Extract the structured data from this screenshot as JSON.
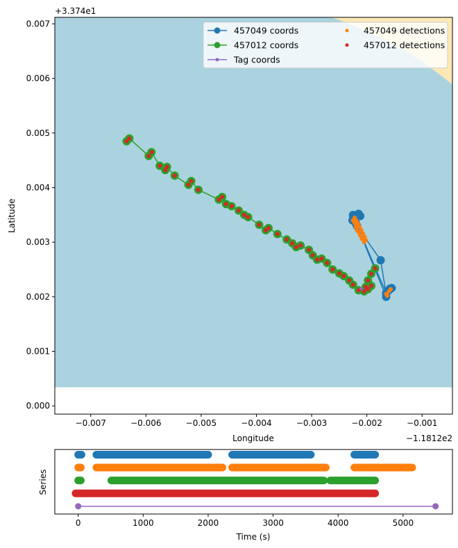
{
  "chart_data": [
    {
      "type": "scatter",
      "xlabel": "Longitude",
      "ylabel": "Latitude",
      "x_offset_label": "−1.1812e2",
      "y_offset_label": "+3.374e1",
      "xlim": [
        -0.00765,
        -0.00045
      ],
      "ylim": [
        -0.00015,
        0.00712
      ],
      "x_ticks": [
        -0.007,
        -0.006,
        -0.005,
        -0.004,
        -0.003,
        -0.002,
        -0.001
      ],
      "x_tick_labels": [
        "−0.007",
        "−0.006",
        "−0.005",
        "−0.004",
        "−0.003",
        "−0.002",
        "−0.001"
      ],
      "y_ticks": [
        0.0,
        0.001,
        0.002,
        0.003,
        0.004,
        0.005,
        0.006,
        0.007
      ],
      "y_tick_labels": [
        "0.000",
        "0.001",
        "0.002",
        "0.003",
        "0.004",
        "0.005",
        "0.006",
        "0.007"
      ],
      "background": {
        "water_color": "#aad3df",
        "land_color": "#fbe8b4",
        "water_bottom_lat": 0.00034
      },
      "legend": {
        "placement": "top-right",
        "columns": 2,
        "entries": [
          {
            "label": "457049 coords",
            "color": "#1f77b4",
            "style": "line-marker"
          },
          {
            "label": "457049 detections",
            "color": "#ff7f0e",
            "style": "point"
          },
          {
            "label": "457012 coords",
            "color": "#2ca02c",
            "style": "line-marker"
          },
          {
            "label": "457012 detections",
            "color": "#d62728",
            "style": "point"
          },
          {
            "label": "Tag coords",
            "color": "#9467bd",
            "style": "line-small-marker"
          }
        ]
      },
      "series": [
        {
          "name": "457049 coords",
          "color": "#1f77b4",
          "style": "line-marker",
          "points": [
            [
              -0.00225,
              0.0035
            ],
            [
              -0.00222,
              0.00345
            ],
            [
              -0.00226,
              0.0034
            ],
            [
              -0.0022,
              0.00335
            ],
            [
              -0.00215,
              0.00352
            ],
            [
              -0.00212,
              0.00348
            ],
            [
              -0.00218,
              0.0033
            ],
            [
              -0.00175,
              0.00267
            ],
            [
              -0.00165,
              0.00205
            ],
            [
              -0.0016,
              0.00212
            ],
            [
              -0.00155,
              0.00216
            ],
            [
              -0.00165,
              0.002
            ],
            [
              -0.00225,
              0.00348
            ],
            [
              -0.00165,
              0.00207
            ],
            [
              -0.00158,
              0.00215
            ]
          ]
        },
        {
          "name": "457049 detections",
          "color": "#ff7f0e",
          "style": "point",
          "points": [
            [
              -0.00225,
              0.0034
            ],
            [
              -0.00222,
              0.00335
            ],
            [
              -0.0022,
              0.00328
            ],
            [
              -0.00218,
              0.00322
            ],
            [
              -0.00215,
              0.00318
            ],
            [
              -0.00212,
              0.00312
            ],
            [
              -0.00209,
              0.00306
            ],
            [
              -0.00205,
              0.003
            ],
            [
              -0.00222,
              0.00345
            ],
            [
              -0.00219,
              0.0034
            ],
            [
              -0.00216,
              0.00334
            ],
            [
              -0.00213,
              0.00328
            ],
            [
              -0.0021,
              0.00322
            ],
            [
              -0.00207,
              0.00316
            ],
            [
              -0.00204,
              0.0031
            ],
            [
              -0.00202,
              0.00304
            ],
            [
              -0.00165,
              0.00205
            ],
            [
              -0.0016,
              0.0021
            ],
            [
              -0.00157,
              0.00214
            ],
            [
              -0.00163,
              0.00202
            ]
          ]
        },
        {
          "name": "457012 coords",
          "color": "#2ca02c",
          "style": "line-marker",
          "points": [
            [
              -0.00635,
              0.00485
            ],
            [
              -0.0063,
              0.0049
            ],
            [
              -0.00595,
              0.00458
            ],
            [
              -0.0059,
              0.00465
            ],
            [
              -0.00575,
              0.0044
            ],
            [
              -0.00565,
              0.00432
            ],
            [
              -0.00562,
              0.00438
            ],
            [
              -0.00548,
              0.00422
            ],
            [
              -0.00523,
              0.00405
            ],
            [
              -0.00518,
              0.00412
            ],
            [
              -0.00505,
              0.00396
            ],
            [
              -0.00468,
              0.00378
            ],
            [
              -0.00462,
              0.00383
            ],
            [
              -0.00455,
              0.0037
            ],
            [
              -0.00445,
              0.00366
            ],
            [
              -0.00432,
              0.00358
            ],
            [
              -0.00422,
              0.0035
            ],
            [
              -0.00415,
              0.00346
            ],
            [
              -0.00395,
              0.00332
            ],
            [
              -0.00383,
              0.00322
            ],
            [
              -0.00378,
              0.00326
            ],
            [
              -0.00362,
              0.00315
            ],
            [
              -0.00345,
              0.00305
            ],
            [
              -0.00335,
              0.00298
            ],
            [
              -0.00328,
              0.00291
            ],
            [
              -0.0032,
              0.00294
            ],
            [
              -0.00305,
              0.00286
            ],
            [
              -0.00298,
              0.00276
            ],
            [
              -0.0029,
              0.00268
            ],
            [
              -0.00282,
              0.0027
            ],
            [
              -0.00272,
              0.00262
            ],
            [
              -0.00262,
              0.0025
            ],
            [
              -0.0025,
              0.00243
            ],
            [
              -0.00242,
              0.00238
            ],
            [
              -0.00232,
              0.0023
            ],
            [
              -0.00225,
              0.00222
            ],
            [
              -0.00215,
              0.00212
            ],
            [
              -0.00205,
              0.0021
            ],
            [
              -0.00198,
              0.00214
            ],
            [
              -0.00192,
              0.0022
            ],
            [
              -0.00202,
              0.00218
            ],
            [
              -0.00198,
              0.0023
            ],
            [
              -0.00192,
              0.00242
            ],
            [
              -0.00185,
              0.00252
            ]
          ]
        },
        {
          "name": "457012 detections",
          "color": "#d62728",
          "style": "point",
          "points": [
            [
              -0.00635,
              0.00485
            ],
            [
              -0.0063,
              0.0049
            ],
            [
              -0.00595,
              0.00458
            ],
            [
              -0.0059,
              0.00465
            ],
            [
              -0.00575,
              0.0044
            ],
            [
              -0.00565,
              0.00432
            ],
            [
              -0.00562,
              0.00438
            ],
            [
              -0.00548,
              0.00422
            ],
            [
              -0.00523,
              0.00405
            ],
            [
              -0.00518,
              0.00412
            ],
            [
              -0.00505,
              0.00396
            ],
            [
              -0.00468,
              0.00378
            ],
            [
              -0.00462,
              0.00383
            ],
            [
              -0.00455,
              0.0037
            ],
            [
              -0.00445,
              0.00366
            ],
            [
              -0.00432,
              0.00358
            ],
            [
              -0.00422,
              0.0035
            ],
            [
              -0.00415,
              0.00346
            ],
            [
              -0.00395,
              0.00332
            ],
            [
              -0.00383,
              0.00322
            ],
            [
              -0.00378,
              0.00326
            ],
            [
              -0.00362,
              0.00315
            ],
            [
              -0.00345,
              0.00305
            ],
            [
              -0.00335,
              0.00298
            ],
            [
              -0.00328,
              0.00291
            ],
            [
              -0.0032,
              0.00294
            ],
            [
              -0.00305,
              0.00286
            ],
            [
              -0.00298,
              0.00276
            ],
            [
              -0.0029,
              0.00268
            ],
            [
              -0.00282,
              0.0027
            ],
            [
              -0.00272,
              0.00262
            ],
            [
              -0.00262,
              0.0025
            ],
            [
              -0.0025,
              0.00243
            ],
            [
              -0.00242,
              0.00238
            ],
            [
              -0.00232,
              0.0023
            ],
            [
              -0.00225,
              0.00222
            ],
            [
              -0.00215,
              0.00212
            ],
            [
              -0.00205,
              0.0021
            ],
            [
              -0.00198,
              0.00214
            ],
            [
              -0.00192,
              0.0022
            ],
            [
              -0.00202,
              0.00218
            ],
            [
              -0.00198,
              0.0023
            ],
            [
              -0.00192,
              0.00242
            ],
            [
              -0.00185,
              0.00252
            ]
          ]
        },
        {
          "name": "Tag coords",
          "color": "#9467bd",
          "style": "point-small",
          "points": [
            [
              -0.0021,
              0.00215
            ]
          ]
        }
      ]
    },
    {
      "type": "scatter",
      "xlabel": "Time (s)",
      "ylabel": "Series",
      "xlim": [
        -360,
        5760
      ],
      "ylim": [
        -0.6,
        4.4
      ],
      "x_ticks": [
        0,
        1000,
        2000,
        3000,
        4000,
        5000
      ],
      "x_tick_labels": [
        "0",
        "1000",
        "2000",
        "3000",
        "4000",
        "5000"
      ],
      "series": [
        {
          "name": "457049 coords",
          "color": "#1f77b4",
          "level": 4,
          "segments": [
            [
              0,
              50
            ],
            [
              280,
              2000
            ],
            [
              2370,
              3580
            ],
            [
              4250,
              4570
            ]
          ]
        },
        {
          "name": "457049 detections",
          "color": "#ff7f0e",
          "level": 3,
          "segments": [
            [
              0,
              40
            ],
            [
              280,
              2220
            ],
            [
              2370,
              3810
            ],
            [
              4250,
              5140
            ]
          ]
        },
        {
          "name": "457012 coords",
          "color": "#2ca02c",
          "level": 2,
          "segments": [
            [
              0,
              40
            ],
            [
              510,
              3780
            ],
            [
              3880,
              4570
            ]
          ]
        },
        {
          "name": "457012 detections",
          "color": "#d62728",
          "level": 1,
          "segments": [
            [
              -40,
              4570
            ]
          ]
        },
        {
          "name": "Tag coords",
          "color": "#9467bd",
          "level": 0,
          "line": [
            0,
            5500
          ]
        }
      ]
    }
  ]
}
